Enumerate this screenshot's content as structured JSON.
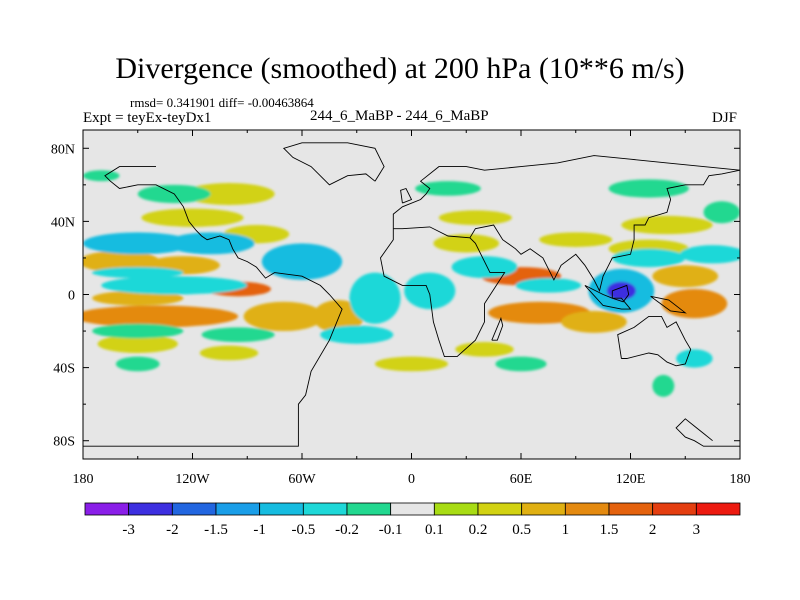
{
  "chart_data": {
    "type": "heatmap",
    "title": "Divergence (smoothed) at 200 hPa (10**6 m/s)",
    "stats_text": "rmsd= 0.341901 diff= -0.00463864",
    "experiment_text": "Expt = teyEx-teyDx1",
    "case_text": "244_6_MaBP - 244_6_MaBP",
    "season": "DJF",
    "x_range": [
      -180,
      180
    ],
    "y_range": [
      -90,
      90
    ],
    "x_ticks": [
      {
        "value": -180,
        "label": "180"
      },
      {
        "value": -120,
        "label": "120W"
      },
      {
        "value": -60,
        "label": "60W"
      },
      {
        "value": 0,
        "label": "0"
      },
      {
        "value": 60,
        "label": "60E"
      },
      {
        "value": 120,
        "label": "120E"
      },
      {
        "value": 180,
        "label": "180"
      }
    ],
    "y_ticks": [
      {
        "value": 80,
        "label": "80N"
      },
      {
        "value": 40,
        "label": "40N"
      },
      {
        "value": 0,
        "label": "0"
      },
      {
        "value": -40,
        "label": "40S"
      },
      {
        "value": -80,
        "label": "80S"
      }
    ],
    "colorbar": {
      "colors": [
        "#8a1ee8",
        "#3d2fe0",
        "#2266e0",
        "#1a9ee8",
        "#16bce0",
        "#1ed8d8",
        "#22d890",
        "#e6e6e6",
        "#a8dc14",
        "#d2d212",
        "#e0b012",
        "#e48a10",
        "#e4620e",
        "#e43e10",
        "#ec1a10"
      ],
      "levels": [
        -3,
        -2,
        -1.5,
        -1,
        -0.5,
        -0.2,
        -0.1,
        0.1,
        0.2,
        0.5,
        1,
        1.5,
        2,
        3
      ],
      "level_labels": [
        "-3",
        "-2",
        "-1.5",
        "-1",
        "-0.5",
        "-0.2",
        "-0.1",
        "0.1",
        "0.2",
        "0.5",
        "1",
        "1.5",
        "2",
        "3"
      ]
    },
    "background_color": "#e6e6e6",
    "features": [
      {
        "lon": -160,
        "lat": 18,
        "rx": 22,
        "ry": 6,
        "value": 0.8
      },
      {
        "lon": -125,
        "lat": 16,
        "rx": 20,
        "ry": 5,
        "value": 0.8
      },
      {
        "lon": -95,
        "lat": 3,
        "rx": 18,
        "ry": 4,
        "value": 1.6
      },
      {
        "lon": -150,
        "lat": -2,
        "rx": 25,
        "ry": 4,
        "value": 0.6
      },
      {
        "lon": -140,
        "lat": -12,
        "rx": 45,
        "ry": 6,
        "value": 1.2
      },
      {
        "lon": -70,
        "lat": -12,
        "rx": 22,
        "ry": 8,
        "value": 0.9
      },
      {
        "lon": -40,
        "lat": -12,
        "rx": 14,
        "ry": 9,
        "value": 0.8
      },
      {
        "lon": -120,
        "lat": 42,
        "rx": 28,
        "ry": 5,
        "value": 0.4
      },
      {
        "lon": -85,
        "lat": 33,
        "rx": 18,
        "ry": 5,
        "value": 0.4
      },
      {
        "lon": -150,
        "lat": -27,
        "rx": 22,
        "ry": 5,
        "value": 0.3
      },
      {
        "lon": -100,
        "lat": -32,
        "rx": 16,
        "ry": 4,
        "value": 0.3
      },
      {
        "lon": 30,
        "lat": 28,
        "rx": 18,
        "ry": 5,
        "value": 0.4
      },
      {
        "lon": 60,
        "lat": 10,
        "rx": 22,
        "ry": 5,
        "value": 1.5
      },
      {
        "lon": 35,
        "lat": 42,
        "rx": 20,
        "ry": 4,
        "value": 0.3
      },
      {
        "lon": 70,
        "lat": -10,
        "rx": 28,
        "ry": 6,
        "value": 1.2
      },
      {
        "lon": 100,
        "lat": -15,
        "rx": 18,
        "ry": 6,
        "value": 0.8
      },
      {
        "lon": 155,
        "lat": -5,
        "rx": 18,
        "ry": 8,
        "value": 1.4
      },
      {
        "lon": 150,
        "lat": 10,
        "rx": 18,
        "ry": 6,
        "value": 0.6
      },
      {
        "lon": 90,
        "lat": 30,
        "rx": 20,
        "ry": 4,
        "value": 0.4
      },
      {
        "lon": 130,
        "lat": 25,
        "rx": 22,
        "ry": 5,
        "value": 0.3
      },
      {
        "lon": 40,
        "lat": -30,
        "rx": 16,
        "ry": 4,
        "value": 0.3
      },
      {
        "lon": 0,
        "lat": -38,
        "rx": 20,
        "ry": 4,
        "value": 0.2
      },
      {
        "lon": -100,
        "lat": 55,
        "rx": 25,
        "ry": 6,
        "value": 0.2
      },
      {
        "lon": 140,
        "lat": 38,
        "rx": 25,
        "ry": 5,
        "value": 0.2
      },
      {
        "lon": -150,
        "lat": 28,
        "rx": 30,
        "ry": 6,
        "value": -0.6
      },
      {
        "lon": -110,
        "lat": 28,
        "rx": 24,
        "ry": 6,
        "value": -0.6
      },
      {
        "lon": -130,
        "lat": 5,
        "rx": 40,
        "ry": 5,
        "value": -0.5
      },
      {
        "lon": -150,
        "lat": 12,
        "rx": 25,
        "ry": 3,
        "value": -0.5
      },
      {
        "lon": -60,
        "lat": 18,
        "rx": 22,
        "ry": 10,
        "value": -0.6
      },
      {
        "lon": -20,
        "lat": -2,
        "rx": 14,
        "ry": 14,
        "value": -0.5
      },
      {
        "lon": 10,
        "lat": 2,
        "rx": 14,
        "ry": 10,
        "value": -0.4
      },
      {
        "lon": 40,
        "lat": 15,
        "rx": 18,
        "ry": 6,
        "value": -0.4
      },
      {
        "lon": 115,
        "lat": 2,
        "rx": 18,
        "ry": 12,
        "value": -1.0
      },
      {
        "lon": 115,
        "lat": 2,
        "rx": 8,
        "ry": 5,
        "value": -2.2
      },
      {
        "lon": 75,
        "lat": 5,
        "rx": 18,
        "ry": 4,
        "value": -0.4
      },
      {
        "lon": 130,
        "lat": 20,
        "rx": 20,
        "ry": 5,
        "value": -0.3
      },
      {
        "lon": 165,
        "lat": 22,
        "rx": 18,
        "ry": 5,
        "value": -0.3
      },
      {
        "lon": -150,
        "lat": -20,
        "rx": 25,
        "ry": 4,
        "value": -0.2
      },
      {
        "lon": -95,
        "lat": -22,
        "rx": 20,
        "ry": 4,
        "value": -0.2
      },
      {
        "lon": -30,
        "lat": -22,
        "rx": 20,
        "ry": 5,
        "value": -0.3
      },
      {
        "lon": -130,
        "lat": 55,
        "rx": 20,
        "ry": 5,
        "value": -0.2
      },
      {
        "lon": 20,
        "lat": 58,
        "rx": 18,
        "ry": 4,
        "value": -0.2
      },
      {
        "lon": 130,
        "lat": 58,
        "rx": 22,
        "ry": 5,
        "value": -0.2
      },
      {
        "lon": -150,
        "lat": -38,
        "rx": 12,
        "ry": 4,
        "value": -0.2
      },
      {
        "lon": 60,
        "lat": -38,
        "rx": 14,
        "ry": 4,
        "value": -0.2
      },
      {
        "lon": 138,
        "lat": -50,
        "rx": 6,
        "ry": 6,
        "value": -0.2
      },
      {
        "lon": 155,
        "lat": -35,
        "rx": 10,
        "ry": 5,
        "value": -0.3
      },
      {
        "lon": 170,
        "lat": 45,
        "rx": 10,
        "ry": 6,
        "value": -0.2
      },
      {
        "lon": -170,
        "lat": 65,
        "rx": 10,
        "ry": 3,
        "value": -0.15
      }
    ],
    "land_outline": [
      [
        [
          -180,
          -83
        ],
        [
          -62,
          -83
        ],
        [
          -62,
          -60
        ],
        [
          -58,
          -55
        ],
        [
          -55,
          -42
        ],
        [
          -45,
          -25
        ],
        [
          -38,
          -8
        ],
        [
          -45,
          0
        ],
        [
          -50,
          5
        ],
        [
          -60,
          10
        ],
        [
          -75,
          12
        ],
        [
          -80,
          9
        ],
        [
          -85,
          15
        ],
        [
          -90,
          18
        ],
        [
          -95,
          20
        ],
        [
          -98,
          25
        ],
        [
          -100,
          30
        ],
        [
          -105,
          32
        ],
        [
          -112,
          30
        ],
        [
          -115,
          32
        ],
        [
          -118,
          35
        ],
        [
          -122,
          40
        ],
        [
          -125,
          48
        ],
        [
          -130,
          55
        ],
        [
          -140,
          60
        ],
        [
          -150,
          60
        ],
        [
          -160,
          58
        ],
        [
          -165,
          62
        ],
        [
          -168,
          65
        ],
        [
          -160,
          70
        ],
        [
          -150,
          70
        ],
        [
          -140,
          70
        ]
      ],
      [
        [
          -20,
          62
        ],
        [
          -15,
          70
        ],
        [
          -20,
          80
        ],
        [
          -35,
          83
        ],
        [
          -60,
          83
        ],
        [
          -70,
          80
        ],
        [
          -65,
          75
        ],
        [
          -55,
          70
        ],
        [
          -45,
          60
        ],
        [
          -35,
          65
        ],
        [
          -25,
          66
        ],
        [
          -20,
          62
        ]
      ],
      [
        [
          180,
          -83
        ],
        [
          160,
          -83
        ],
        [
          155,
          -80
        ],
        [
          150,
          -78
        ],
        [
          145,
          -73
        ],
        [
          150,
          -68
        ],
        [
          155,
          -72
        ],
        [
          160,
          -76
        ],
        [
          165,
          -80
        ]
      ],
      [
        [
          115,
          -35
        ],
        [
          113,
          -22
        ],
        [
          122,
          -18
        ],
        [
          130,
          -12
        ],
        [
          137,
          -12
        ],
        [
          140,
          -18
        ],
        [
          145,
          -15
        ],
        [
          150,
          -25
        ],
        [
          153,
          -30
        ],
        [
          150,
          -38
        ],
        [
          145,
          -39
        ],
        [
          140,
          -37
        ],
        [
          135,
          -33
        ],
        [
          130,
          -32
        ],
        [
          118,
          -35
        ],
        [
          115,
          -35
        ]
      ],
      [
        [
          -10,
          36
        ],
        [
          -5,
          36
        ],
        [
          10,
          37
        ],
        [
          20,
          32
        ],
        [
          32,
          31
        ],
        [
          35,
          28
        ],
        [
          43,
          12
        ],
        [
          51,
          12
        ],
        [
          40,
          -5
        ],
        [
          40,
          -15
        ],
        [
          35,
          -25
        ],
        [
          25,
          -34
        ],
        [
          18,
          -34
        ],
        [
          15,
          -25
        ],
        [
          12,
          -15
        ],
        [
          10,
          0
        ],
        [
          8,
          5
        ],
        [
          -5,
          5
        ],
        [
          -15,
          10
        ],
        [
          -17,
          20
        ],
        [
          -10,
          30
        ],
        [
          -10,
          36
        ]
      ],
      [
        [
          -10,
          36
        ],
        [
          -10,
          44
        ],
        [
          -5,
          48
        ],
        [
          5,
          52
        ],
        [
          8,
          55
        ],
        [
          10,
          58
        ],
        [
          5,
          62
        ],
        [
          15,
          70
        ],
        [
          30,
          70
        ],
        [
          40,
          68
        ],
        [
          60,
          70
        ],
        [
          80,
          72
        ],
        [
          100,
          76
        ],
        [
          120,
          74
        ],
        [
          140,
          72
        ],
        [
          160,
          70
        ],
        [
          180,
          68
        ]
      ],
      [
        [
          32,
          31
        ],
        [
          35,
          36
        ],
        [
          45,
          38
        ],
        [
          50,
          30
        ],
        [
          57,
          25
        ],
        [
          60,
          22
        ],
        [
          65,
          25
        ],
        [
          72,
          20
        ],
        [
          78,
          8
        ],
        [
          82,
          16
        ],
        [
          90,
          22
        ],
        [
          95,
          16
        ],
        [
          100,
          8
        ],
        [
          103,
          2
        ],
        [
          105,
          10
        ],
        [
          108,
          16
        ],
        [
          110,
          20
        ],
        [
          120,
          22
        ],
        [
          122,
          30
        ],
        [
          122,
          38
        ],
        [
          128,
          38
        ],
        [
          130,
          42
        ],
        [
          140,
          45
        ],
        [
          142,
          52
        ],
        [
          140,
          58
        ],
        [
          150,
          60
        ],
        [
          160,
          60
        ],
        [
          163,
          65
        ],
        [
          170,
          66
        ],
        [
          180,
          68
        ]
      ],
      [
        [
          95,
          5
        ],
        [
          105,
          -6
        ],
        [
          115,
          -8
        ],
        [
          120,
          -8
        ],
        [
          115,
          -2
        ],
        [
          110,
          -2
        ],
        [
          105,
          0
        ],
        [
          95,
          5
        ]
      ],
      [
        [
          110,
          2
        ],
        [
          118,
          5
        ],
        [
          119,
          0
        ],
        [
          116,
          -4
        ],
        [
          110,
          -2
        ],
        [
          110,
          2
        ]
      ],
      [
        [
          131,
          -1
        ],
        [
          141,
          -3
        ],
        [
          150,
          -10
        ],
        [
          142,
          -9
        ],
        [
          135,
          -4
        ],
        [
          131,
          -1
        ]
      ],
      [
        [
          44,
          -25
        ],
        [
          49,
          -13
        ],
        [
          50,
          -17
        ],
        [
          47,
          -25
        ],
        [
          44,
          -25
        ]
      ],
      [
        [
          -5,
          50
        ],
        [
          0,
          52
        ],
        [
          -3,
          58
        ],
        [
          -6,
          57
        ],
        [
          -5,
          50
        ]
      ]
    ]
  }
}
